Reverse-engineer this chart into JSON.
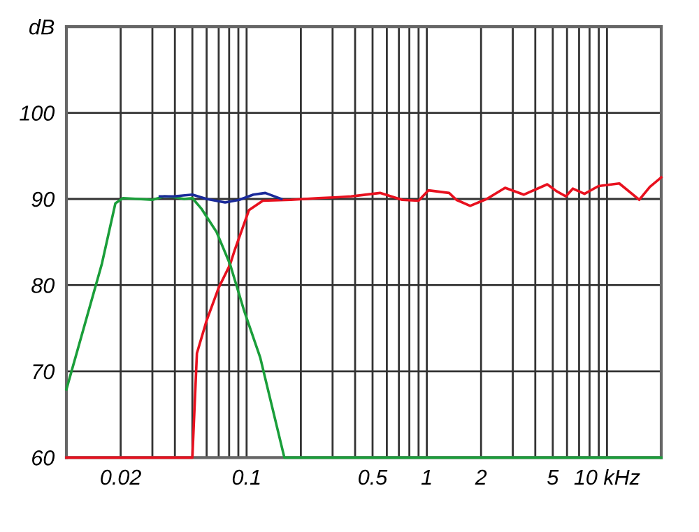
{
  "chart_data": {
    "type": "line",
    "log": "x",
    "grid": true,
    "legend": false,
    "marker": "none",
    "line_style": "solid",
    "xlim": [
      0.01,
      20
    ],
    "ylim": [
      60,
      110
    ],
    "xticks": [
      {
        "value": 0.02,
        "label": "0.02"
      },
      {
        "value": 0.03,
        "label": null
      },
      {
        "value": 0.04,
        "label": null
      },
      {
        "value": 0.05,
        "label": null
      },
      {
        "value": 0.06,
        "label": null
      },
      {
        "value": 0.07,
        "label": null
      },
      {
        "value": 0.08,
        "label": null
      },
      {
        "value": 0.09,
        "label": null
      },
      {
        "value": 0.1,
        "label": "0.1"
      },
      {
        "value": 0.2,
        "label": null
      },
      {
        "value": 0.3,
        "label": null
      },
      {
        "value": 0.4,
        "label": null
      },
      {
        "value": 0.5,
        "label": "0.5"
      },
      {
        "value": 0.6,
        "label": null
      },
      {
        "value": 0.7,
        "label": null
      },
      {
        "value": 0.8,
        "label": null
      },
      {
        "value": 0.9,
        "label": null
      },
      {
        "value": 1,
        "label": "1"
      },
      {
        "value": 2,
        "label": "2"
      },
      {
        "value": 3,
        "label": null
      },
      {
        "value": 4,
        "label": null
      },
      {
        "value": 5,
        "label": "5"
      },
      {
        "value": 6,
        "label": null
      },
      {
        "value": 7,
        "label": null
      },
      {
        "value": 8,
        "label": null
      },
      {
        "value": 9,
        "label": null
      },
      {
        "value": 10,
        "label": "10 kHz"
      }
    ],
    "yticks": [
      60,
      70,
      80,
      90,
      100,
      {
        "value": 110,
        "label": "dB"
      }
    ],
    "series": [
      {
        "color": "#e8101e",
        "x": [
          0.01,
          0.05,
          0.053,
          0.06,
          0.07,
          0.081,
          0.086,
          0.103,
          0.123,
          0.176,
          0.25,
          0.32,
          0.38,
          0.55,
          0.73,
          0.9,
          1.02,
          1.33,
          1.46,
          1.74,
          2.15,
          2.72,
          3.45,
          4.66,
          5.25,
          5.91,
          6.46,
          7.5,
          8.97,
          11.7,
          15.1,
          17.3,
          20
        ],
        "values": [
          60,
          60,
          72.1,
          75.9,
          79.7,
          82.4,
          84.1,
          88.7,
          89.8,
          89.9,
          90.1,
          90.2,
          90.3,
          90.7,
          89.9,
          89.8,
          91.0,
          90.7,
          89.9,
          89.2,
          90.0,
          91.3,
          90.5,
          91.7,
          90.9,
          90.3,
          91.2,
          90.6,
          91.5,
          91.8,
          89.9,
          91.4,
          92.5
        ]
      },
      {
        "color": "#1a9e3a",
        "x": [
          0.01,
          0.0157,
          0.0187,
          0.0206,
          0.025,
          0.03,
          0.035,
          0.04,
          0.045,
          0.05,
          0.056,
          0.068,
          0.081,
          0.097,
          0.119,
          0.162,
          20
        ],
        "values": [
          67.9,
          82.4,
          89.5,
          90.1,
          90.0,
          89.9,
          90.3,
          90.2,
          90.0,
          90.1,
          88.9,
          86.2,
          82.4,
          77.0,
          71.6,
          60,
          60
        ]
      },
      {
        "color": "#1a2a9a",
        "x": [
          0.033,
          0.0395,
          0.05,
          0.06,
          0.076,
          0.091,
          0.109,
          0.127,
          0.156
        ],
        "values": [
          90.3,
          90.3,
          90.5,
          90.0,
          89.6,
          89.9,
          90.5,
          90.7,
          90.0
        ]
      }
    ]
  }
}
